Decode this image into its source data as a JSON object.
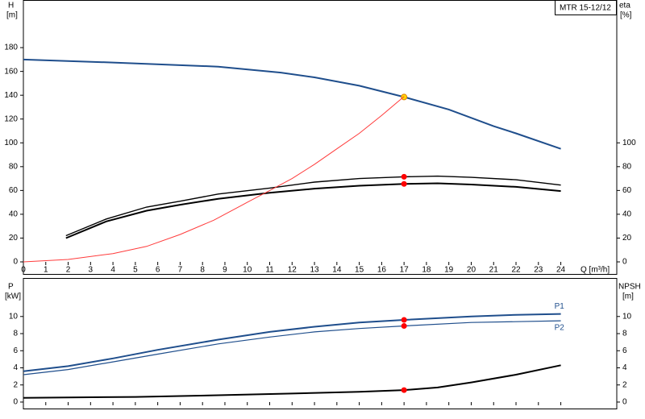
{
  "chart_data": [
    {
      "type": "line",
      "title": "MTR 15-12/12",
      "x_label": "Q [m³/h]",
      "y_label": "H",
      "y_unit": "[m]",
      "y2_label": "eta",
      "y2_unit": "[%]",
      "xlim": [
        0,
        26.5
      ],
      "xticks": [
        0,
        1,
        2,
        3,
        4,
        5,
        6,
        7,
        8,
        9,
        10,
        11,
        12,
        13,
        14,
        15,
        16,
        17,
        18,
        19,
        20,
        21,
        22,
        23,
        24
      ],
      "ylim": [
        0,
        220
      ],
      "yticks": [
        0,
        20,
        40,
        60,
        80,
        100,
        120,
        140,
        160,
        180
      ],
      "y2lim": [
        0,
        220
      ],
      "y2ticks": [
        0,
        20,
        40,
        60,
        80,
        100
      ],
      "highlight_x": 17,
      "grid": false,
      "series": [
        {
          "color": "#1f4e8c",
          "width": 2,
          "highlight_color": "#ffd700",
          "x": [
            0,
            4,
            8.7,
            11.5,
            13,
            15,
            17,
            19,
            21,
            22,
            24
          ],
          "values": [
            170,
            167.5,
            164,
            159,
            155,
            148,
            138.5,
            128,
            114,
            108,
            95
          ]
        },
        {
          "color": "#000000",
          "width": 1.4,
          "axis": "y2",
          "highlight_color": "#ff0000",
          "x": [
            1.9,
            3.7,
            5.5,
            7,
            8.7,
            11,
            13,
            15,
            17,
            18.5,
            20,
            22,
            24
          ],
          "values": [
            22,
            36,
            46,
            51,
            57,
            62,
            67,
            70,
            71.5,
            72,
            71,
            69,
            64.5
          ]
        },
        {
          "color": "#000000",
          "width": 2,
          "axis": "y2",
          "highlight_color": "#ff0000",
          "x": [
            1.9,
            3.7,
            5.5,
            7,
            8.7,
            11,
            13,
            15,
            17,
            18.5,
            20,
            22,
            24
          ],
          "values": [
            20,
            34,
            43,
            48,
            53,
            58,
            61.5,
            64,
            65.5,
            66,
            65,
            63,
            59.5
          ]
        },
        {
          "color": "#ff3b3b",
          "width": 1,
          "x": [
            0,
            2,
            4,
            5.5,
            7,
            8.5,
            10,
            11,
            12,
            13,
            14,
            15,
            16,
            17
          ],
          "values": [
            0,
            2,
            7,
            13,
            23,
            35,
            50,
            60,
            70,
            82,
            95,
            108,
            123,
            139
          ]
        }
      ]
    },
    {
      "type": "line",
      "y_label": "P",
      "y_unit": "[kW]",
      "y2_label": "NPSH",
      "y2_unit": "[m]",
      "xlim": [
        0,
        26.5
      ],
      "xticks": [
        0,
        1,
        2,
        3,
        4,
        5,
        6,
        7,
        8,
        9,
        10,
        11,
        12,
        13,
        14,
        15,
        16,
        17,
        18,
        19,
        20,
        21,
        22,
        23,
        24
      ],
      "ylim": [
        -0.85,
        14.5
      ],
      "yticks": [
        0,
        2,
        4,
        6,
        8,
        10
      ],
      "y2lim": [
        -0.85,
        14.5
      ],
      "y2ticks": [
        0,
        2,
        4,
        6,
        8,
        10
      ],
      "highlight_x": 17,
      "grid": false,
      "series": [
        {
          "name": "P1",
          "color": "#1f4e8c",
          "width": 2,
          "highlight_color": "#ff0000",
          "x": [
            0,
            2,
            4,
            6,
            8.7,
            11,
            13,
            15,
            17,
            20,
            22,
            24
          ],
          "values": [
            3.6,
            4.2,
            5.1,
            6.1,
            7.3,
            8.2,
            8.8,
            9.3,
            9.6,
            10.0,
            10.2,
            10.3
          ]
        },
        {
          "name": "P2",
          "color": "#1f4e8c",
          "width": 1.2,
          "highlight_color": "#ff0000",
          "x": [
            0,
            2,
            4,
            6,
            8.7,
            11,
            13,
            15,
            17,
            20,
            22,
            24
          ],
          "values": [
            3.2,
            3.8,
            4.7,
            5.6,
            6.8,
            7.6,
            8.2,
            8.6,
            8.9,
            9.3,
            9.4,
            9.5
          ]
        },
        {
          "color": "#000000",
          "width": 2,
          "axis": "y2",
          "highlight_color": "#ff0000",
          "x": [
            0,
            5,
            8.7,
            12,
            15,
            17,
            18.5,
            20,
            22,
            24
          ],
          "values": [
            0.5,
            0.6,
            0.8,
            1.0,
            1.2,
            1.4,
            1.7,
            2.3,
            3.2,
            4.3
          ]
        }
      ]
    }
  ]
}
